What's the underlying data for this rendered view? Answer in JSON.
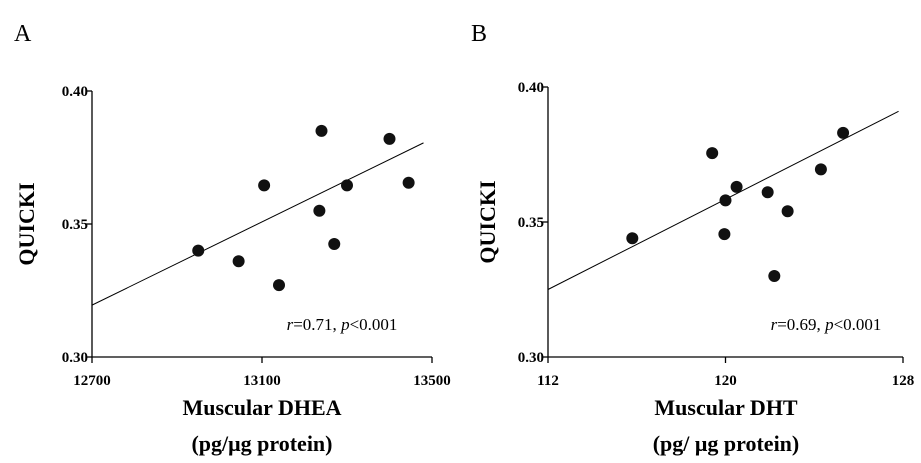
{
  "chart_data": [
    {
      "panel_label": "A",
      "type": "scatter",
      "xlabel": "Muscular DHEA",
      "xlabel_unit": "(pg/μg protein)",
      "ylabel": "QUICKI",
      "xlim": [
        12700,
        13500
      ],
      "ylim": [
        0.3,
        0.4
      ],
      "x_ticks": [
        "12700",
        "13100",
        "13500"
      ],
      "y_ticks": [
        "0.30",
        "0.35",
        "0.40"
      ],
      "points": [
        {
          "x": 12950,
          "y": 0.34
        },
        {
          "x": 13045,
          "y": 0.336
        },
        {
          "x": 13105,
          "y": 0.3645
        },
        {
          "x": 13140,
          "y": 0.327
        },
        {
          "x": 13235,
          "y": 0.355
        },
        {
          "x": 13240,
          "y": 0.385
        },
        {
          "x": 13270,
          "y": 0.3425
        },
        {
          "x": 13300,
          "y": 0.3645
        },
        {
          "x": 13400,
          "y": 0.382
        },
        {
          "x": 13445,
          "y": 0.3655
        }
      ],
      "fit_line": {
        "x": [
          12700,
          13480
        ],
        "y": [
          0.3195,
          0.3805
        ]
      },
      "annotation_r": "r",
      "annotation_r_value": "=0.71, ",
      "annotation_p": "p",
      "annotation_p_value": "<0.001"
    },
    {
      "panel_label": "B",
      "type": "scatter",
      "xlabel": "Muscular DHT",
      "xlabel_unit": "(pg/ μg protein)",
      "ylabel": "QUICKI",
      "xlim": [
        112,
        128
      ],
      "ylim": [
        0.3,
        0.4
      ],
      "x_ticks": [
        "112",
        "120",
        "128"
      ],
      "y_ticks": [
        "0.30",
        "0.35",
        "0.40"
      ],
      "points": [
        {
          "x": 115.8,
          "y": 0.344
        },
        {
          "x": 119.4,
          "y": 0.3755
        },
        {
          "x": 119.95,
          "y": 0.3455
        },
        {
          "x": 120.0,
          "y": 0.358
        },
        {
          "x": 120.5,
          "y": 0.363
        },
        {
          "x": 121.9,
          "y": 0.361
        },
        {
          "x": 122.2,
          "y": 0.33
        },
        {
          "x": 122.8,
          "y": 0.354
        },
        {
          "x": 124.3,
          "y": 0.3695
        },
        {
          "x": 125.3,
          "y": 0.383
        }
      ],
      "fit_line": {
        "x": [
          112,
          127.8
        ],
        "y": [
          0.325,
          0.391
        ]
      },
      "annotation_r": "r",
      "annotation_r_value": "=0.69, ",
      "annotation_p": "p",
      "annotation_p_value": "<0.001"
    }
  ]
}
